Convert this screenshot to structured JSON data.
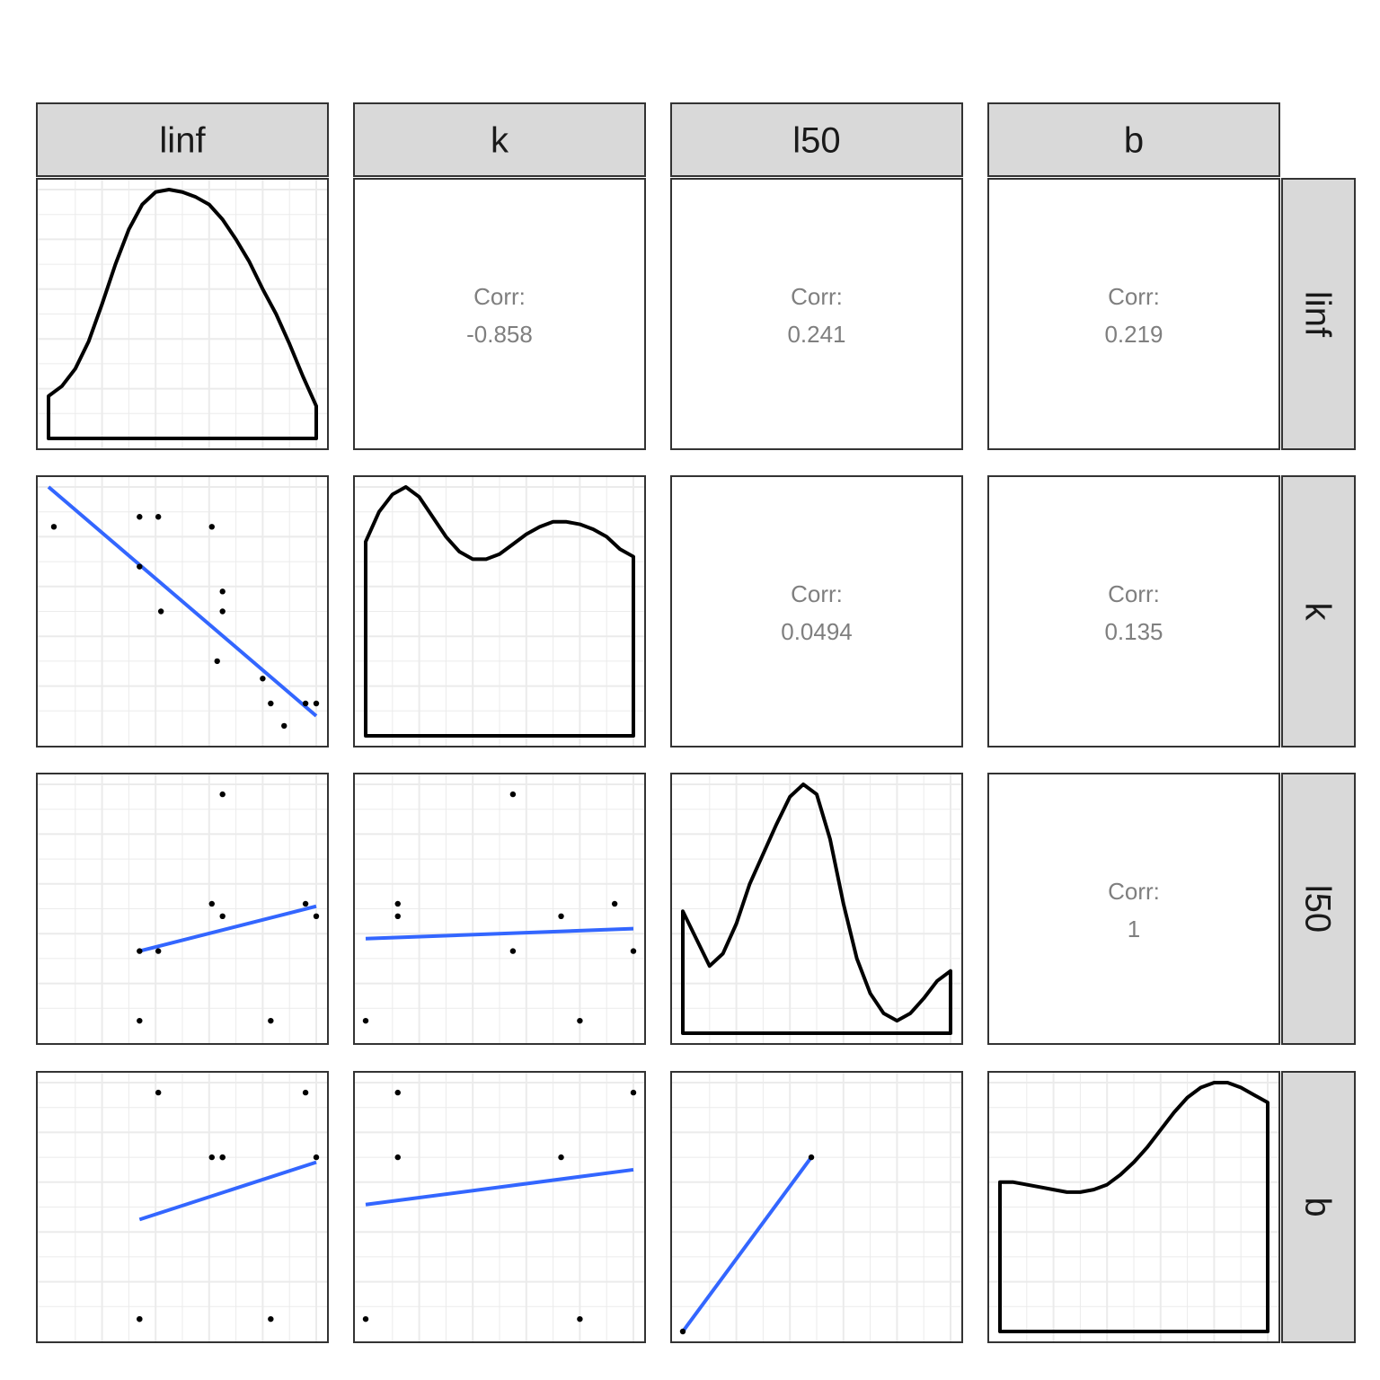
{
  "chart_data": {
    "type": "scatter",
    "variables": [
      "linf",
      "k",
      "l50",
      "b"
    ],
    "corr_label": "Corr:",
    "correlations": [
      {
        "row": "linf",
        "col": "k",
        "value": "-0.858"
      },
      {
        "row": "linf",
        "col": "l50",
        "value": "0.241"
      },
      {
        "row": "linf",
        "col": "b",
        "value": "0.219"
      },
      {
        "row": "k",
        "col": "l50",
        "value": "0.0494"
      },
      {
        "row": "k",
        "col": "b",
        "value": "0.135"
      },
      {
        "row": "l50",
        "col": "b",
        "value": "1"
      }
    ],
    "observations": [
      {
        "linf": 0.02,
        "k": 0.84,
        "l50": null,
        "b": null
      },
      {
        "linf": 0.34,
        "k": 0.88,
        "l50": 0.05,
        "b": 0.05
      },
      {
        "linf": 0.34,
        "k": 0.68,
        "l50": 0.33,
        "b": 0.05
      },
      {
        "linf": 0.41,
        "k": 0.88,
        "l50": 0.33,
        "b": 0.96
      },
      {
        "linf": 0.42,
        "k": 0.5,
        "l50": null,
        "b": null
      },
      {
        "linf": 0.61,
        "k": 0.84,
        "l50": 0.52,
        "b": 0.7
      },
      {
        "linf": 0.63,
        "k": 0.3,
        "l50": null,
        "b": null
      },
      {
        "linf": 0.65,
        "k": 0.58,
        "l50": 0.96,
        "b": 0.7
      },
      {
        "linf": 0.65,
        "k": 0.5,
        "l50": 0.47,
        "b": 0.7
      },
      {
        "linf": 0.8,
        "k": 0.23,
        "l50": null,
        "b": null
      },
      {
        "linf": 0.83,
        "k": 0.13,
        "l50": 0.05,
        "b": 0.05
      },
      {
        "linf": 0.88,
        "k": 0.04,
        "l50": null,
        "b": null
      },
      {
        "linf": 0.96,
        "k": 0.13,
        "l50": 0.52,
        "b": 0.96
      },
      {
        "linf": 1.0,
        "k": 0.13,
        "l50": 0.47,
        "b": 0.7
      }
    ],
    "scatter_points": {
      "k_vs_l50": [
        [
          0.12,
          0.52
        ],
        [
          0.12,
          0.47
        ],
        [
          0.55,
          0.96
        ],
        [
          0.55,
          0.33
        ],
        [
          0.73,
          0.47
        ],
        [
          0.8,
          0.05
        ],
        [
          0.93,
          0.52
        ],
        [
          1.0,
          0.33
        ],
        [
          0.0,
          0.05
        ]
      ],
      "k_vs_b": [
        [
          0.12,
          0.96
        ],
        [
          0.12,
          0.7
        ],
        [
          0.0,
          0.05
        ],
        [
          0.73,
          0.7
        ],
        [
          0.8,
          0.05
        ],
        [
          1.0,
          0.96
        ]
      ],
      "l50_vs_b": [
        [
          0.0,
          0.0
        ],
        [
          0.48,
          0.7
        ]
      ]
    },
    "regression_lines": {
      "k_vs_linf": [
        [
          0.0,
          1.0
        ],
        [
          1.0,
          0.08
        ]
      ],
      "l50_vs_linf": [
        [
          0.34,
          0.33
        ],
        [
          1.0,
          0.51
        ]
      ],
      "l50_vs_k": [
        [
          0.0,
          0.38
        ],
        [
          1.0,
          0.42
        ]
      ],
      "b_vs_linf": [
        [
          0.34,
          0.45
        ],
        [
          1.0,
          0.68
        ]
      ],
      "b_vs_k": [
        [
          0.0,
          0.51
        ],
        [
          1.0,
          0.65
        ]
      ],
      "b_vs_l50": [
        [
          0.0,
          0.0
        ],
        [
          0.48,
          0.7
        ]
      ]
    },
    "densities": {
      "linf": [
        [
          0.0,
          0.17
        ],
        [
          0.05,
          0.21
        ],
        [
          0.1,
          0.28
        ],
        [
          0.15,
          0.39
        ],
        [
          0.2,
          0.54
        ],
        [
          0.25,
          0.7
        ],
        [
          0.3,
          0.84
        ],
        [
          0.35,
          0.94
        ],
        [
          0.4,
          0.99
        ],
        [
          0.45,
          1.0
        ],
        [
          0.5,
          0.99
        ],
        [
          0.55,
          0.97
        ],
        [
          0.6,
          0.94
        ],
        [
          0.65,
          0.88
        ],
        [
          0.7,
          0.8
        ],
        [
          0.75,
          0.71
        ],
        [
          0.8,
          0.6
        ],
        [
          0.85,
          0.5
        ],
        [
          0.9,
          0.38
        ],
        [
          0.95,
          0.25
        ],
        [
          1.0,
          0.13
        ]
      ],
      "k": [
        [
          0.0,
          0.78
        ],
        [
          0.05,
          0.9
        ],
        [
          0.1,
          0.97
        ],
        [
          0.15,
          1.0
        ],
        [
          0.2,
          0.96
        ],
        [
          0.25,
          0.88
        ],
        [
          0.3,
          0.8
        ],
        [
          0.35,
          0.74
        ],
        [
          0.4,
          0.71
        ],
        [
          0.45,
          0.71
        ],
        [
          0.5,
          0.73
        ],
        [
          0.55,
          0.77
        ],
        [
          0.6,
          0.81
        ],
        [
          0.65,
          0.84
        ],
        [
          0.7,
          0.86
        ],
        [
          0.75,
          0.86
        ],
        [
          0.8,
          0.85
        ],
        [
          0.85,
          0.83
        ],
        [
          0.9,
          0.8
        ],
        [
          0.95,
          0.75
        ],
        [
          1.0,
          0.72
        ]
      ],
      "l50": [
        [
          0.0,
          0.49
        ],
        [
          0.05,
          0.38
        ],
        [
          0.1,
          0.27
        ],
        [
          0.15,
          0.32
        ],
        [
          0.2,
          0.44
        ],
        [
          0.25,
          0.6
        ],
        [
          0.3,
          0.72
        ],
        [
          0.35,
          0.84
        ],
        [
          0.4,
          0.95
        ],
        [
          0.45,
          1.0
        ],
        [
          0.5,
          0.96
        ],
        [
          0.55,
          0.78
        ],
        [
          0.6,
          0.52
        ],
        [
          0.65,
          0.3
        ],
        [
          0.7,
          0.16
        ],
        [
          0.75,
          0.08
        ],
        [
          0.8,
          0.05
        ],
        [
          0.85,
          0.08
        ],
        [
          0.9,
          0.14
        ],
        [
          0.95,
          0.21
        ],
        [
          1.0,
          0.25
        ]
      ],
      "b": [
        [
          0.0,
          0.6
        ],
        [
          0.05,
          0.6
        ],
        [
          0.1,
          0.59
        ],
        [
          0.15,
          0.58
        ],
        [
          0.2,
          0.57
        ],
        [
          0.25,
          0.56
        ],
        [
          0.3,
          0.56
        ],
        [
          0.35,
          0.57
        ],
        [
          0.4,
          0.59
        ],
        [
          0.45,
          0.63
        ],
        [
          0.5,
          0.68
        ],
        [
          0.55,
          0.74
        ],
        [
          0.6,
          0.81
        ],
        [
          0.65,
          0.88
        ],
        [
          0.7,
          0.94
        ],
        [
          0.75,
          0.98
        ],
        [
          0.8,
          1.0
        ],
        [
          0.85,
          1.0
        ],
        [
          0.9,
          0.98
        ],
        [
          0.95,
          0.95
        ],
        [
          1.0,
          0.92
        ]
      ]
    },
    "grid": true,
    "colors": {
      "points": "#000000",
      "lines": "#3366ff",
      "density": "#000000",
      "strip": "#d9d9d9",
      "grid": "#ebebeb",
      "corr_text": "#7f7f7f"
    }
  }
}
